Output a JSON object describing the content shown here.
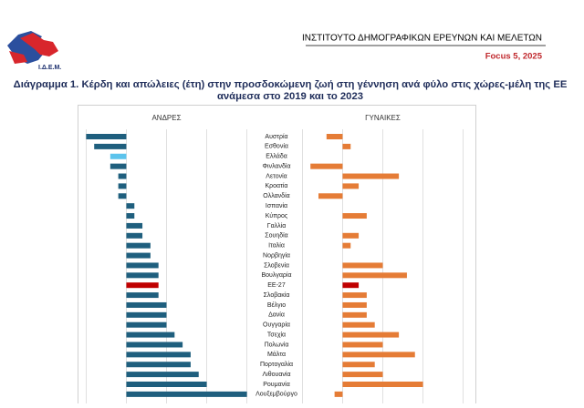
{
  "header": {
    "logo_text": "Ι.Δ.Ε.Μ.",
    "institute": "ΙΝΣΤΙΤΟΥΤΟ ΔΗΜΟΓΡΑΦΙΚΩΝ ΕΡΕΥΝΩΝ ΚΑΙ ΜΕΛΕΤΩΝ",
    "issue": "Focus 5, 2025"
  },
  "chart_data": {
    "type": "bar",
    "orientation": "horizontal",
    "title": [
      "Διάγραμμα 1. Κέρδη και απώλειες (έτη) στην προσδοκώμενη ζωή στη γέννηση ανά φύλο στις χώρες-μέλη της ΕΕ",
      "ανάμεσα στο 2019 και το 2023"
    ],
    "categories": [
      "Αυστρία",
      "Εσθονία",
      "Ελλάδα",
      "Φινλανδία",
      "Λετονία",
      "Κροατία",
      "Ολλανδία",
      "Ισπανία",
      "Κύπρος",
      "Γαλλία",
      "Σουηδία",
      "Ιταλία",
      "Νορβηγία",
      "Σλοβενία",
      "Βουλγαρία",
      "ΕΕ-27",
      "Σλοβακία",
      "Βέλγιο",
      "Δανία",
      "Ουγγαρία",
      "Τσεχία",
      "Πολωνία",
      "Μάλτα",
      "Πορτογαλία",
      "Λιθουανία",
      "Ρουμανία",
      "Λουξεμβούργο"
    ],
    "xlim": [
      -1.1,
      3.1
    ],
    "xgrid": [
      -1,
      0,
      1,
      2,
      3
    ],
    "series": [
      {
        "name": "ΑΝΔΡΕΣ",
        "color": "#1f5f7e",
        "point_colors": {
          "2": "#5cc3ec",
          "15": "#c00000"
        },
        "values": [
          -1.0,
          -0.8,
          -0.4,
          -0.4,
          -0.2,
          -0.2,
          -0.2,
          0.2,
          0.2,
          0.4,
          0.4,
          0.6,
          0.6,
          0.8,
          0.8,
          0.8,
          0.8,
          1.0,
          1.0,
          1.0,
          1.2,
          1.4,
          1.6,
          1.6,
          1.8,
          2.0,
          3.0
        ]
      },
      {
        "name": "ΓΥΝΑΙΚΕΣ",
        "color": "#e57c36",
        "point_colors": {
          "15": "#c00000"
        },
        "values": [
          -0.4,
          0.2,
          0,
          -0.8,
          1.4,
          0.4,
          -0.6,
          0,
          0.6,
          0,
          0.4,
          0.2,
          0,
          1.0,
          1.6,
          0.4,
          0.6,
          0.6,
          0.6,
          0.8,
          1.4,
          1.0,
          1.8,
          0.8,
          1.0,
          2.0,
          -0.2
        ]
      }
    ]
  }
}
